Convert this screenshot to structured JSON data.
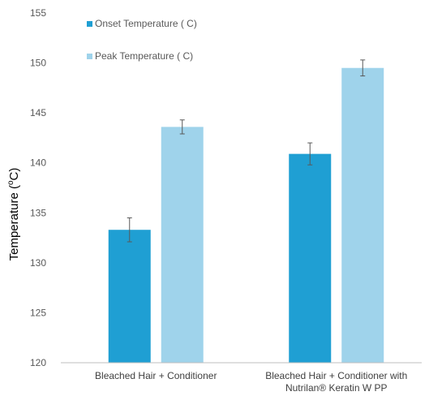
{
  "chart_data": {
    "type": "bar",
    "categories": [
      [
        "Bleached Hair + Conditioner"
      ],
      [
        "Bleached Hair + Conditioner with",
        "Nutrilan® Keratin W PP"
      ]
    ],
    "series": [
      {
        "name": "Onset Temperature ( C)",
        "color": "#1f9fd3",
        "values": [
          133.3,
          140.9
        ],
        "errors": [
          1.2,
          1.1
        ]
      },
      {
        "name": "Peak  Temperature ( C)",
        "color": "#9fd3eb",
        "values": [
          143.6,
          149.5
        ],
        "errors": [
          0.7,
          0.8
        ]
      }
    ],
    "ylabel": {
      "main": "Temperature (",
      "sup": "o",
      "rest": "C)"
    },
    "ylim": [
      120,
      155
    ],
    "yticks": [
      120,
      125,
      130,
      135,
      140,
      145,
      150,
      155
    ],
    "grid": false,
    "legend": "top-left, inside plot"
  }
}
